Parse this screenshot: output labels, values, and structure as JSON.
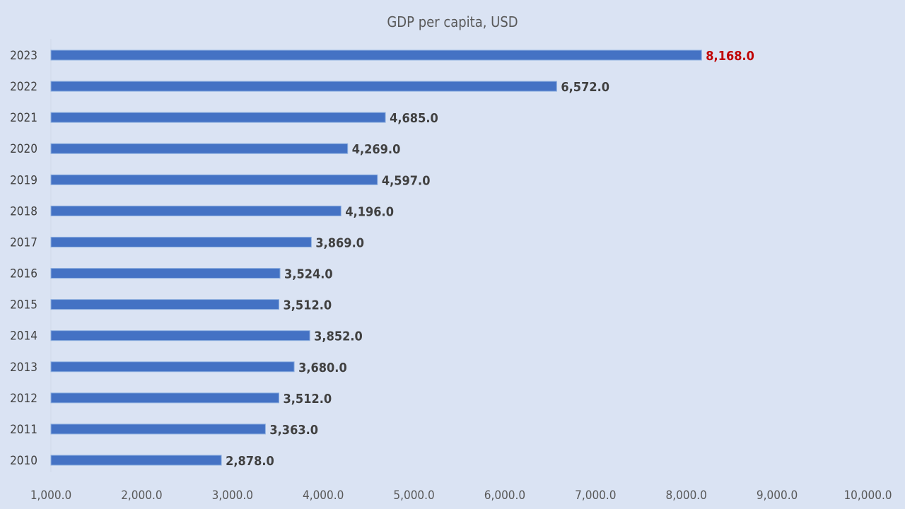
{
  "chart_data": {
    "type": "bar",
    "orientation": "horizontal",
    "title": "GDP per capita, USD",
    "xlabel": "",
    "ylabel": "",
    "categories": [
      "2010",
      "2011",
      "2012",
      "2013",
      "2014",
      "2015",
      "2016",
      "2017",
      "2018",
      "2019",
      "2020",
      "2021",
      "2022",
      "2023"
    ],
    "values": [
      2878,
      3363,
      3512,
      3680,
      3852,
      3512,
      3524,
      3869,
      4196,
      4597,
      4269,
      4685,
      6572,
      8168
    ],
    "data_labels": [
      "2,878.0",
      "3,363.0",
      "3,512.0",
      "3,680.0",
      "3,852.0",
      "3,512.0",
      "3,524.0",
      "3,869.0",
      "4,196.0",
      "4,597.0",
      "4,269.0",
      "4,685.0",
      "6,572.0",
      "8,168.0"
    ],
    "xlim": [
      1000,
      10000
    ],
    "x_ticks": [
      1000,
      2000,
      3000,
      4000,
      5000,
      6000,
      7000,
      8000,
      9000,
      10000
    ],
    "x_tick_labels": [
      "1,000.0",
      "2,000.0",
      "3,000.0",
      "4,000.0",
      "5,000.0",
      "6,000.0",
      "7,000.0",
      "8,000.0",
      "9,000.0",
      "10,000.0"
    ],
    "grid": false,
    "legend": "none",
    "highlight_category": "2023",
    "colors": {
      "bar": "#4472c4",
      "highlight_label": "#c00000",
      "background": "#dae3f3"
    }
  }
}
